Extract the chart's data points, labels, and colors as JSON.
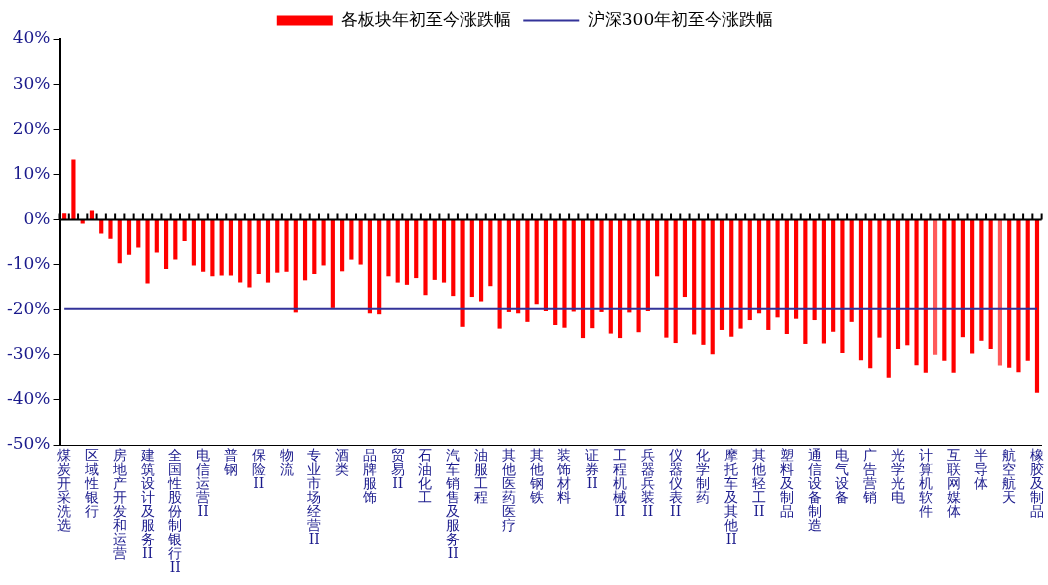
{
  "chart_data": {
    "type": "bar",
    "categories": [
      "煤炭开采洗选",
      null,
      null,
      "区域性银行",
      null,
      null,
      "房地产开发和运营",
      null,
      null,
      "建筑设计及服务II",
      null,
      null,
      "全国性股份制银行II",
      null,
      null,
      "电信运营II",
      null,
      null,
      "普钢",
      null,
      null,
      "保险II",
      null,
      null,
      "物流",
      null,
      null,
      "专业市场经营II",
      null,
      null,
      "酒类",
      null,
      null,
      "品牌服饰",
      null,
      null,
      "贸易II",
      null,
      null,
      "石油化工",
      null,
      null,
      "汽车销售及服务II",
      null,
      null,
      "油服工程",
      null,
      null,
      "其他医药医疗",
      null,
      null,
      "其他钢铁",
      null,
      null,
      "装饰材料",
      null,
      null,
      "证券II",
      null,
      null,
      "工程机械II",
      null,
      null,
      "兵器兵装II",
      null,
      null,
      "仪器仪表II",
      null,
      null,
      "化学制药",
      null,
      null,
      "摩托车及其他II",
      null,
      null,
      "其他轻工II",
      null,
      null,
      "塑料及制品",
      null,
      null,
      "通信设备制造",
      null,
      null,
      "电气设备",
      null,
      null,
      "广告营销",
      null,
      null,
      "光学光电",
      null,
      null,
      "计算机软件",
      null,
      null,
      "互联网媒体",
      null,
      null,
      "半导体",
      null,
      null,
      "航空航天",
      null,
      null,
      "橡胶及制品"
    ],
    "series": [
      {
        "name": "各板块年初至今涨跌幅",
        "color": "#ff0000",
        "colors": [
          "#ff0000",
          "#ff0000",
          "#ff0000",
          "#ff0000",
          "#ff0000",
          "#ff0000",
          "#ff0000",
          "#ff0000",
          "#ff0000",
          "#ff0000",
          "#ff0000",
          "#ff0000",
          "#ff0000",
          "#ff0000",
          "#ff0000",
          "#ff0000",
          "#ff0000",
          "#ff0000",
          "#ff0000",
          "#ff0000",
          "#ff0000",
          "#ff0000",
          "#ff0000",
          "#ff0000",
          "#ff0000",
          "#ff0000",
          "#ff0000",
          "#ff0000",
          "#ff0000",
          "#ff0000",
          "#ff0000",
          "#ff0000",
          "#ff0000",
          "#ff0000",
          "#ff0000",
          "#ff0000",
          "#ff0000",
          "#ff0000",
          "#ff0000",
          "#ff0000",
          "#ff0000",
          "#ff0000",
          "#ff0000",
          "#ff0000",
          "#ff0000",
          "#ff0000",
          "#ff0000",
          "#ff0000",
          "#ff0000",
          "#ff0000",
          "#ff0000",
          "#ff0000",
          "#ff0000",
          "#ff0000",
          "#ff0000",
          "#ff0000",
          "#ff0000",
          "#ff0000",
          "#ff0000",
          "#ff0000",
          "#ff0000",
          "#ff0000",
          "#ff0000",
          "#ff0000",
          "#ff0000",
          "#ff0000",
          "#ff0000",
          "#ff0000",
          "#ff0000",
          "#ff0000",
          "#ff0000",
          "#ff0000",
          "#ff0000",
          "#ff0000",
          "#ff0000",
          "#ff0000",
          "#ff0000",
          "#ff0000",
          "#ff0000",
          "#ff0000",
          "#ff0000",
          "#ff0000",
          "#ff0000",
          "#ff0000",
          "#ff0000",
          "#ff0000",
          "#ff0000",
          "#ff0000",
          "#ff0000",
          "#ff0000",
          "#ff0000",
          "#ff0000",
          "#ff0000",
          "#ff0000",
          "#ff5a5a",
          "#ff0000",
          "#ff0000",
          "#ff0000",
          "#ff0000",
          "#ff0000",
          "#ff0000",
          "#ff5a5a",
          "#ff0000",
          "#ff0000",
          "#ff0000",
          "#ff0000"
        ],
        "values": [
          1.4,
          13.3,
          -0.9,
          2.0,
          -3.1,
          -4.3,
          -9.7,
          -7.8,
          -6.2,
          -14.2,
          -7.3,
          -11.0,
          -8.9,
          -4.8,
          -10.2,
          -11.6,
          -12.6,
          -12.4,
          -12.4,
          -14.0,
          -15.1,
          -12.1,
          -14.0,
          -11.8,
          -11.6,
          -20.6,
          -13.5,
          -12.1,
          -10.2,
          -19.6,
          -11.5,
          -8.9,
          -10.0,
          -20.8,
          -21.0,
          -12.6,
          -14.0,
          -14.5,
          -13.0,
          -16.8,
          -13.4,
          -14.0,
          -17.0,
          -23.8,
          -17.2,
          -18.2,
          -14.8,
          -24.2,
          -20.5,
          -20.8,
          -22.7,
          -18.8,
          -20.3,
          -23.4,
          -24.0,
          -20.4,
          -26.3,
          -24.1,
          -20.5,
          -25.3,
          -26.3,
          -20.6,
          -25.0,
          -20.3,
          -12.6,
          -26.2,
          -27.4,
          -17.2,
          -25.5,
          -27.8,
          -29.9,
          -24.5,
          -26.0,
          -24.2,
          -22.3,
          -20.8,
          -24.5,
          -21.7,
          -25.4,
          -22.0,
          -27.6,
          -22.3,
          -27.5,
          -24.9,
          -29.6,
          -22.7,
          -31.2,
          -33.0,
          -26.2,
          -35.1,
          -28.7,
          -27.9,
          -32.3,
          -34.0,
          -30.0,
          -31.3,
          -34.0,
          -26.1,
          -29.7,
          -26.9,
          -28.7,
          -32.4,
          -32.9,
          -33.9,
          -31.3,
          -38.4
        ]
      },
      {
        "name": "沪深300年初至今涨跌幅",
        "type": "line",
        "color": "#333399",
        "line_style": "solid",
        "marker": "none",
        "values": [
          -19.8,
          -19.8,
          -19.8,
          -19.8,
          -19.8,
          -19.8,
          -19.8,
          -19.8,
          -19.8,
          -19.8,
          -19.8,
          -19.8,
          -19.8,
          -19.8,
          -19.8,
          -19.8,
          -19.8,
          -19.8,
          -19.8,
          -19.8,
          -19.8,
          -19.8,
          -19.8,
          -19.8,
          -19.8,
          -19.8,
          -19.8,
          -19.8,
          -19.8,
          -19.8,
          -19.8,
          -19.8,
          -19.8,
          -19.8,
          -19.8,
          -19.8,
          -19.8,
          -19.8,
          -19.8,
          -19.8,
          -19.8,
          -19.8,
          -19.8,
          -19.8,
          -19.8,
          -19.8,
          -19.8,
          -19.8,
          -19.8,
          -19.8,
          -19.8,
          -19.8,
          -19.8,
          -19.8,
          -19.8,
          -19.8,
          -19.8,
          -19.8,
          -19.8,
          -19.8,
          -19.8,
          -19.8,
          -19.8,
          -19.8,
          -19.8,
          -19.8,
          -19.8,
          -19.8,
          -19.8,
          -19.8,
          -19.8,
          -19.8,
          -19.8,
          -19.8,
          -19.8,
          -19.8,
          -19.8,
          -19.8,
          -19.8,
          -19.8,
          -19.8,
          -19.8,
          -19.8,
          -19.8,
          -19.8,
          -19.8,
          -19.8,
          -19.8,
          -19.8,
          -19.8,
          -19.8,
          -19.8,
          -19.8,
          -19.8,
          -19.8,
          -19.8,
          -19.8,
          -19.8,
          -19.8,
          -19.8,
          -19.8,
          -19.8,
          -19.8,
          -19.8,
          -19.8,
          -19.8
        ]
      }
    ],
    "ylim": [
      -50,
      40
    ],
    "yticks": [
      {
        "value": -50,
        "label": "-50%"
      },
      {
        "value": -40,
        "label": "-40%"
      },
      {
        "value": -30,
        "label": "-30%"
      },
      {
        "value": -20,
        "label": "-20%"
      },
      {
        "value": -10,
        "label": "-10%"
      },
      {
        "value": 0,
        "label": "0%"
      },
      {
        "value": 10,
        "label": "10%"
      },
      {
        "value": 20,
        "label": "20%"
      },
      {
        "value": 30,
        "label": "30%"
      },
      {
        "value": 40,
        "label": "40%"
      }
    ],
    "grid": false,
    "ref_lines": [
      {
        "axis": "y",
        "value": 0,
        "color": "#000000"
      }
    ],
    "legend": "top"
  }
}
